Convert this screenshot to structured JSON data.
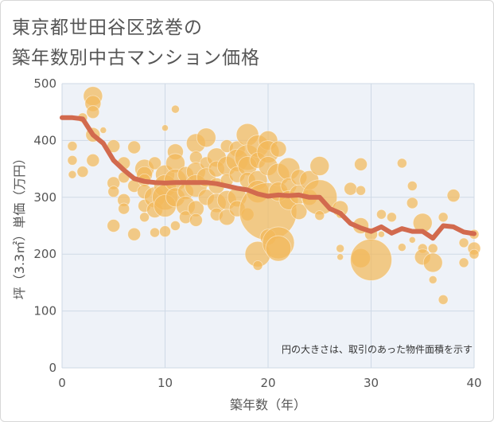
{
  "title_line1": "東京都世田谷区弦巻の",
  "title_line2": "築年数別中古マンション価格",
  "colors": {
    "bubble": "#F2B95A",
    "trend": "#D26A4E",
    "plot_bg": "#eef2f8",
    "grid": "#cfd9e6"
  },
  "chart_data": {
    "type": "scatter",
    "title": "東京都世田谷区弦巻の 築年数別中古マンション価格",
    "xlabel": "築年数（年）",
    "ylabel": "坪（3.3㎡）単価（万円）",
    "xlim": [
      0,
      40
    ],
    "ylim": [
      0,
      500
    ],
    "xticks": [
      0,
      10,
      20,
      30,
      40
    ],
    "yticks": [
      0,
      100,
      200,
      300,
      400,
      500
    ],
    "grid": true,
    "annotation": "円の大きさは、取引のあった物件面積を示す",
    "bubbles": [
      {
        "x": 1,
        "y": 390,
        "s": 6
      },
      {
        "x": 1,
        "y": 365,
        "s": 6
      },
      {
        "x": 1,
        "y": 340,
        "s": 5
      },
      {
        "x": 2,
        "y": 345,
        "s": 7
      },
      {
        "x": 2,
        "y": 440,
        "s": 6
      },
      {
        "x": 3,
        "y": 478,
        "s": 12
      },
      {
        "x": 3,
        "y": 465,
        "s": 10
      },
      {
        "x": 3,
        "y": 450,
        "s": 8
      },
      {
        "x": 3,
        "y": 410,
        "s": 9
      },
      {
        "x": 3,
        "y": 365,
        "s": 8
      },
      {
        "x": 4,
        "y": 418,
        "s": 4
      },
      {
        "x": 5,
        "y": 390,
        "s": 8
      },
      {
        "x": 5,
        "y": 325,
        "s": 8
      },
      {
        "x": 5,
        "y": 310,
        "s": 7
      },
      {
        "x": 5,
        "y": 250,
        "s": 8
      },
      {
        "x": 6,
        "y": 360,
        "s": 8
      },
      {
        "x": 6,
        "y": 335,
        "s": 7
      },
      {
        "x": 6,
        "y": 295,
        "s": 8
      },
      {
        "x": 6,
        "y": 280,
        "s": 7
      },
      {
        "x": 7,
        "y": 388,
        "s": 8
      },
      {
        "x": 7,
        "y": 320,
        "s": 8
      },
      {
        "x": 7,
        "y": 235,
        "s": 8
      },
      {
        "x": 8,
        "y": 350,
        "s": 12
      },
      {
        "x": 8,
        "y": 340,
        "s": 10
      },
      {
        "x": 8,
        "y": 330,
        "s": 8
      },
      {
        "x": 8,
        "y": 310,
        "s": 9
      },
      {
        "x": 8,
        "y": 285,
        "s": 8
      },
      {
        "x": 8,
        "y": 265,
        "s": 6
      },
      {
        "x": 9,
        "y": 360,
        "s": 8
      },
      {
        "x": 9,
        "y": 300,
        "s": 13
      },
      {
        "x": 9,
        "y": 278,
        "s": 10
      },
      {
        "x": 9,
        "y": 238,
        "s": 6
      },
      {
        "x": 10,
        "y": 422,
        "s": 4
      },
      {
        "x": 10,
        "y": 340,
        "s": 12
      },
      {
        "x": 10,
        "y": 320,
        "s": 14
      },
      {
        "x": 10,
        "y": 300,
        "s": 16
      },
      {
        "x": 10,
        "y": 285,
        "s": 14
      },
      {
        "x": 10,
        "y": 240,
        "s": 7
      },
      {
        "x": 11,
        "y": 455,
        "s": 5
      },
      {
        "x": 11,
        "y": 380,
        "s": 10
      },
      {
        "x": 11,
        "y": 360,
        "s": 12
      },
      {
        "x": 11,
        "y": 330,
        "s": 14
      },
      {
        "x": 11,
        "y": 300,
        "s": 12
      },
      {
        "x": 11,
        "y": 250,
        "s": 6
      },
      {
        "x": 12,
        "y": 340,
        "s": 10
      },
      {
        "x": 12,
        "y": 310,
        "s": 10
      },
      {
        "x": 12,
        "y": 285,
        "s": 12
      },
      {
        "x": 12,
        "y": 265,
        "s": 8
      },
      {
        "x": 13,
        "y": 395,
        "s": 12
      },
      {
        "x": 13,
        "y": 370,
        "s": 8
      },
      {
        "x": 13,
        "y": 345,
        "s": 12
      },
      {
        "x": 13,
        "y": 320,
        "s": 14
      },
      {
        "x": 13,
        "y": 280,
        "s": 10
      },
      {
        "x": 13,
        "y": 260,
        "s": 8
      },
      {
        "x": 14,
        "y": 405,
        "s": 12
      },
      {
        "x": 14,
        "y": 360,
        "s": 8
      },
      {
        "x": 14,
        "y": 335,
        "s": 12
      },
      {
        "x": 14,
        "y": 300,
        "s": 10
      },
      {
        "x": 15,
        "y": 370,
        "s": 12
      },
      {
        "x": 15,
        "y": 350,
        "s": 10
      },
      {
        "x": 15,
        "y": 320,
        "s": 10
      },
      {
        "x": 15,
        "y": 290,
        "s": 12
      },
      {
        "x": 15,
        "y": 270,
        "s": 8
      },
      {
        "x": 16,
        "y": 390,
        "s": 8
      },
      {
        "x": 16,
        "y": 355,
        "s": 12
      },
      {
        "x": 16,
        "y": 330,
        "s": 8
      },
      {
        "x": 16,
        "y": 295,
        "s": 12
      },
      {
        "x": 16,
        "y": 265,
        "s": 10
      },
      {
        "x": 17,
        "y": 385,
        "s": 10
      },
      {
        "x": 17,
        "y": 365,
        "s": 14
      },
      {
        "x": 17,
        "y": 340,
        "s": 10
      },
      {
        "x": 17,
        "y": 300,
        "s": 12
      },
      {
        "x": 17,
        "y": 280,
        "s": 10
      },
      {
        "x": 18,
        "y": 410,
        "s": 14
      },
      {
        "x": 18,
        "y": 370,
        "s": 16
      },
      {
        "x": 18,
        "y": 355,
        "s": 12
      },
      {
        "x": 18,
        "y": 330,
        "s": 10
      },
      {
        "x": 18,
        "y": 270,
        "s": 8
      },
      {
        "x": 19,
        "y": 390,
        "s": 14
      },
      {
        "x": 19,
        "y": 365,
        "s": 10
      },
      {
        "x": 19,
        "y": 330,
        "s": 12
      },
      {
        "x": 19,
        "y": 310,
        "s": 14
      },
      {
        "x": 19,
        "y": 200,
        "s": 16
      },
      {
        "x": 19,
        "y": 180,
        "s": 6
      },
      {
        "x": 20,
        "y": 400,
        "s": 12
      },
      {
        "x": 20,
        "y": 380,
        "s": 14
      },
      {
        "x": 20,
        "y": 355,
        "s": 12
      },
      {
        "x": 20,
        "y": 275,
        "s": 36
      },
      {
        "x": 20,
        "y": 230,
        "s": 10
      },
      {
        "x": 21,
        "y": 385,
        "s": 10
      },
      {
        "x": 21,
        "y": 340,
        "s": 14
      },
      {
        "x": 21,
        "y": 310,
        "s": 12
      },
      {
        "x": 21,
        "y": 220,
        "s": 20
      },
      {
        "x": 21,
        "y": 210,
        "s": 16
      },
      {
        "x": 22,
        "y": 350,
        "s": 14
      },
      {
        "x": 22,
        "y": 320,
        "s": 10
      },
      {
        "x": 22,
        "y": 295,
        "s": 12
      },
      {
        "x": 23,
        "y": 335,
        "s": 10
      },
      {
        "x": 23,
        "y": 305,
        "s": 12
      },
      {
        "x": 23,
        "y": 275,
        "s": 10
      },
      {
        "x": 24,
        "y": 330,
        "s": 12
      },
      {
        "x": 24,
        "y": 300,
        "s": 10
      },
      {
        "x": 25,
        "y": 355,
        "s": 12
      },
      {
        "x": 25,
        "y": 300,
        "s": 22
      },
      {
        "x": 25,
        "y": 268,
        "s": 6
      },
      {
        "x": 27,
        "y": 280,
        "s": 10
      },
      {
        "x": 27,
        "y": 270,
        "s": 5
      },
      {
        "x": 27,
        "y": 210,
        "s": 5
      },
      {
        "x": 27,
        "y": 195,
        "s": 4
      },
      {
        "x": 28,
        "y": 315,
        "s": 8
      },
      {
        "x": 29,
        "y": 358,
        "s": 8
      },
      {
        "x": 29,
        "y": 312,
        "s": 6
      },
      {
        "x": 29,
        "y": 250,
        "s": 10
      },
      {
        "x": 29,
        "y": 193,
        "s": 12
      },
      {
        "x": 30,
        "y": 235,
        "s": 8
      },
      {
        "x": 30,
        "y": 190,
        "s": 26
      },
      {
        "x": 31,
        "y": 270,
        "s": 6
      },
      {
        "x": 31,
        "y": 235,
        "s": 4
      },
      {
        "x": 32,
        "y": 265,
        "s": 6
      },
      {
        "x": 33,
        "y": 360,
        "s": 6
      },
      {
        "x": 33,
        "y": 212,
        "s": 5
      },
      {
        "x": 34,
        "y": 320,
        "s": 6
      },
      {
        "x": 34,
        "y": 290,
        "s": 7
      },
      {
        "x": 34,
        "y": 225,
        "s": 4
      },
      {
        "x": 35,
        "y": 255,
        "s": 12
      },
      {
        "x": 35,
        "y": 210,
        "s": 6
      },
      {
        "x": 35,
        "y": 195,
        "s": 10
      },
      {
        "x": 36,
        "y": 210,
        "s": 6
      },
      {
        "x": 36,
        "y": 185,
        "s": 12
      },
      {
        "x": 36,
        "y": 155,
        "s": 5
      },
      {
        "x": 37,
        "y": 265,
        "s": 6
      },
      {
        "x": 37,
        "y": 120,
        "s": 6
      },
      {
        "x": 38,
        "y": 303,
        "s": 8
      },
      {
        "x": 39,
        "y": 220,
        "s": 6
      },
      {
        "x": 39,
        "y": 185,
        "s": 6
      },
      {
        "x": 40,
        "y": 235,
        "s": 6
      },
      {
        "x": 40,
        "y": 210,
        "s": 8
      },
      {
        "x": 40,
        "y": 200,
        "s": 6
      }
    ],
    "trend": {
      "x": [
        0,
        1,
        2,
        3,
        4,
        5,
        6,
        7,
        8,
        9,
        10,
        11,
        12,
        13,
        14,
        15,
        16,
        17,
        18,
        19,
        20,
        21,
        22,
        23,
        24,
        25,
        26,
        27,
        28,
        29,
        30,
        31,
        32,
        33,
        34,
        35,
        36,
        37,
        38,
        39,
        40
      ],
      "y": [
        440,
        440,
        438,
        410,
        395,
        365,
        348,
        333,
        328,
        326,
        325,
        326,
        326,
        326,
        326,
        324,
        320,
        316,
        313,
        306,
        302,
        304,
        303,
        304,
        300,
        300,
        280,
        272,
        254,
        246,
        240,
        248,
        237,
        245,
        240,
        240,
        228,
        250,
        248,
        239,
        236
      ]
    }
  }
}
